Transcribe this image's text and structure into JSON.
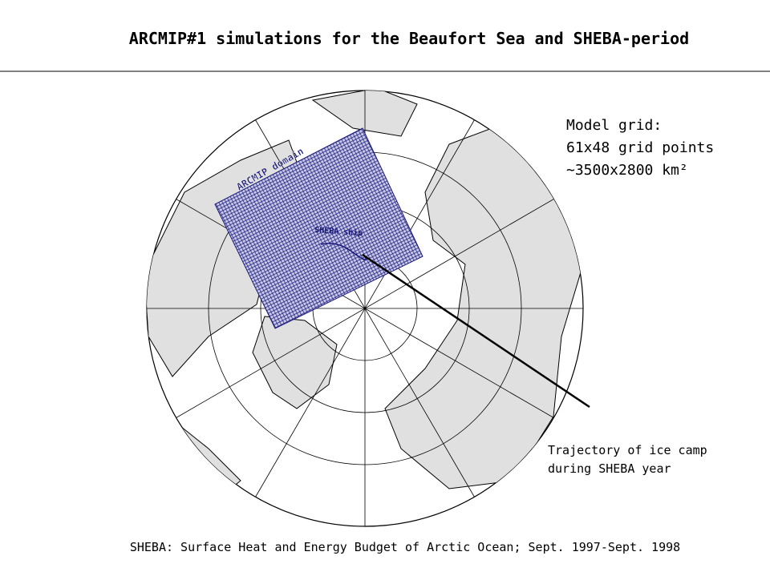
{
  "header": {
    "title": "ARCMIP#1 simulations for the Beaufort Sea and SHEBA-period"
  },
  "map": {
    "domain_label": "ARCMIP domain",
    "ship_label": "SHEBA ship"
  },
  "model_grid": {
    "lines": [
      "Model grid:",
      "61x48 grid points",
      "~3500x2800 km²"
    ]
  },
  "trajectory": {
    "lines": [
      "Trajectory of ice camp",
      "during SHEBA year"
    ]
  },
  "footer": {
    "text": "SHEBA: Surface Heat and Energy Budget of Arctic Ocean; Sept. 1997-Sept. 1998"
  }
}
